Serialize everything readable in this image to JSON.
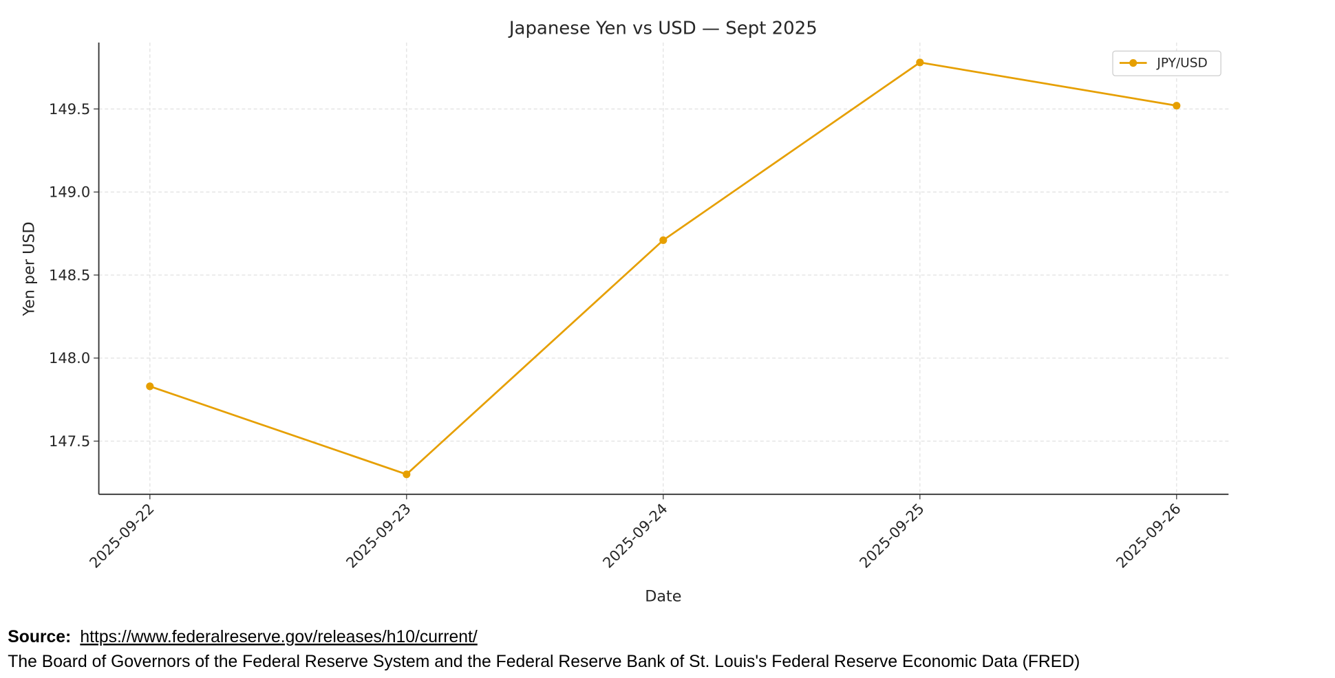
{
  "chart_data": {
    "type": "line",
    "title": "Japanese Yen vs USD — Sept 2025",
    "x_label": "Date",
    "y_label": "Yen per USD",
    "x": [
      "2025-09-22",
      "2025-09-23",
      "2025-09-24",
      "2025-09-25",
      "2025-09-26"
    ],
    "series": [
      {
        "name": "JPY/USD",
        "color": "#e69f00",
        "values": [
          147.83,
          147.3,
          148.71,
          149.78,
          149.52
        ]
      }
    ],
    "ylim": [
      147.18,
      149.9
    ],
    "yticks": [
      147.5,
      {
        "value": 148,
        "label": "148.0"
      },
      148.5,
      {
        "value": 149,
        "label": "149.0"
      },
      149.5
    ],
    "grid": true,
    "legend": "upper right"
  },
  "source": {
    "label": "Source:",
    "url": "https://www.federalreserve.gov/releases/h10/current/",
    "description": "The Board of Governors of the Federal Reserve System and the Federal Reserve Bank of St. Louis's Federal Reserve Economic Data (FRED)"
  }
}
